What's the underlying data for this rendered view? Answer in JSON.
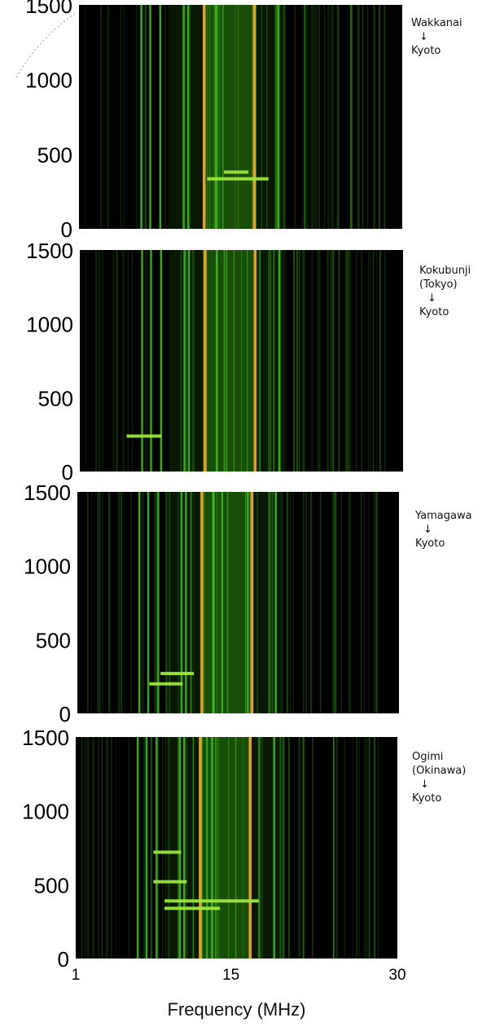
{
  "chart_data": [
    {
      "type": "heatmap",
      "route": [
        "Wakkanai",
        "↓",
        "Kyoto"
      ],
      "xlim": [
        1,
        30
      ],
      "ylim": [
        0,
        1500
      ],
      "yticks": [
        0,
        500,
        1000,
        1500
      ],
      "colors": {
        "background": "#000000",
        "signal": "#3fc21a",
        "strong": "#f0a52a"
      },
      "echoes": [
        {
          "f_start": 14,
          "f_end": 16.2,
          "y": 380
        },
        {
          "f_start": 12.5,
          "f_end": 18,
          "y": 335
        }
      ]
    },
    {
      "type": "heatmap",
      "route": [
        "Kokubunji",
        "(Tokyo)",
        "↓",
        "Kyoto"
      ],
      "xlim": [
        1,
        30
      ],
      "ylim": [
        0,
        1500
      ],
      "yticks": [
        0,
        500,
        1000,
        1500
      ],
      "colors": {
        "background": "#000000",
        "signal": "#3fc21a",
        "strong": "#f0a52a"
      },
      "echoes": [
        {
          "f_start": 5.2,
          "f_end": 8.3,
          "y": 240
        }
      ]
    },
    {
      "type": "heatmap",
      "route": [
        "Yamagawa",
        "↓",
        "Kyoto"
      ],
      "xlim": [
        1,
        30
      ],
      "ylim": [
        0,
        1500
      ],
      "yticks": [
        0,
        500,
        1000,
        1500
      ],
      "colors": {
        "background": "#000000",
        "signal": "#3fc21a",
        "strong": "#f0a52a"
      },
      "echoes": [
        {
          "f_start": 8.5,
          "f_end": 11.5,
          "y": 270
        },
        {
          "f_start": 7.5,
          "f_end": 10.5,
          "y": 200
        }
      ]
    },
    {
      "type": "heatmap",
      "route": [
        "Ogimi",
        "(Okinawa)",
        "↓",
        "Kyoto"
      ],
      "xlim": [
        1,
        30
      ],
      "ylim": [
        0,
        1500
      ],
      "yticks": [
        0,
        500,
        1000,
        1500
      ],
      "xticks": [
        1,
        15,
        30
      ],
      "xlabel": "Frequency (MHz)",
      "colors": {
        "background": "#000000",
        "signal": "#3fc21a",
        "strong": "#f0a52a"
      },
      "echoes": [
        {
          "f_start": 8,
          "f_end": 10.5,
          "y": 720
        },
        {
          "f_start": 8,
          "f_end": 11,
          "y": 520
        },
        {
          "f_start": 9,
          "f_end": 17.5,
          "y": 390
        },
        {
          "f_start": 9,
          "f_end": 14,
          "y": 340
        }
      ]
    }
  ]
}
